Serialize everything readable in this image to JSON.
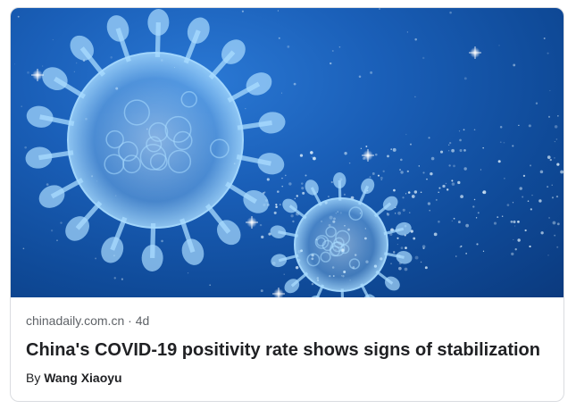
{
  "article": {
    "source": "chinadaily.com.cn",
    "separator": "·",
    "age": "4d",
    "headline": "China's COVID-19 positivity rate shows signs of stabilization",
    "byline_prefix": "By",
    "author": "Wang Xiaoyu"
  },
  "image": {
    "icon": "coronavirus-illustration",
    "colors": {
      "background": "#1a5fb8",
      "virus": "#a9dcff",
      "glow": "#e6f6ff"
    }
  }
}
